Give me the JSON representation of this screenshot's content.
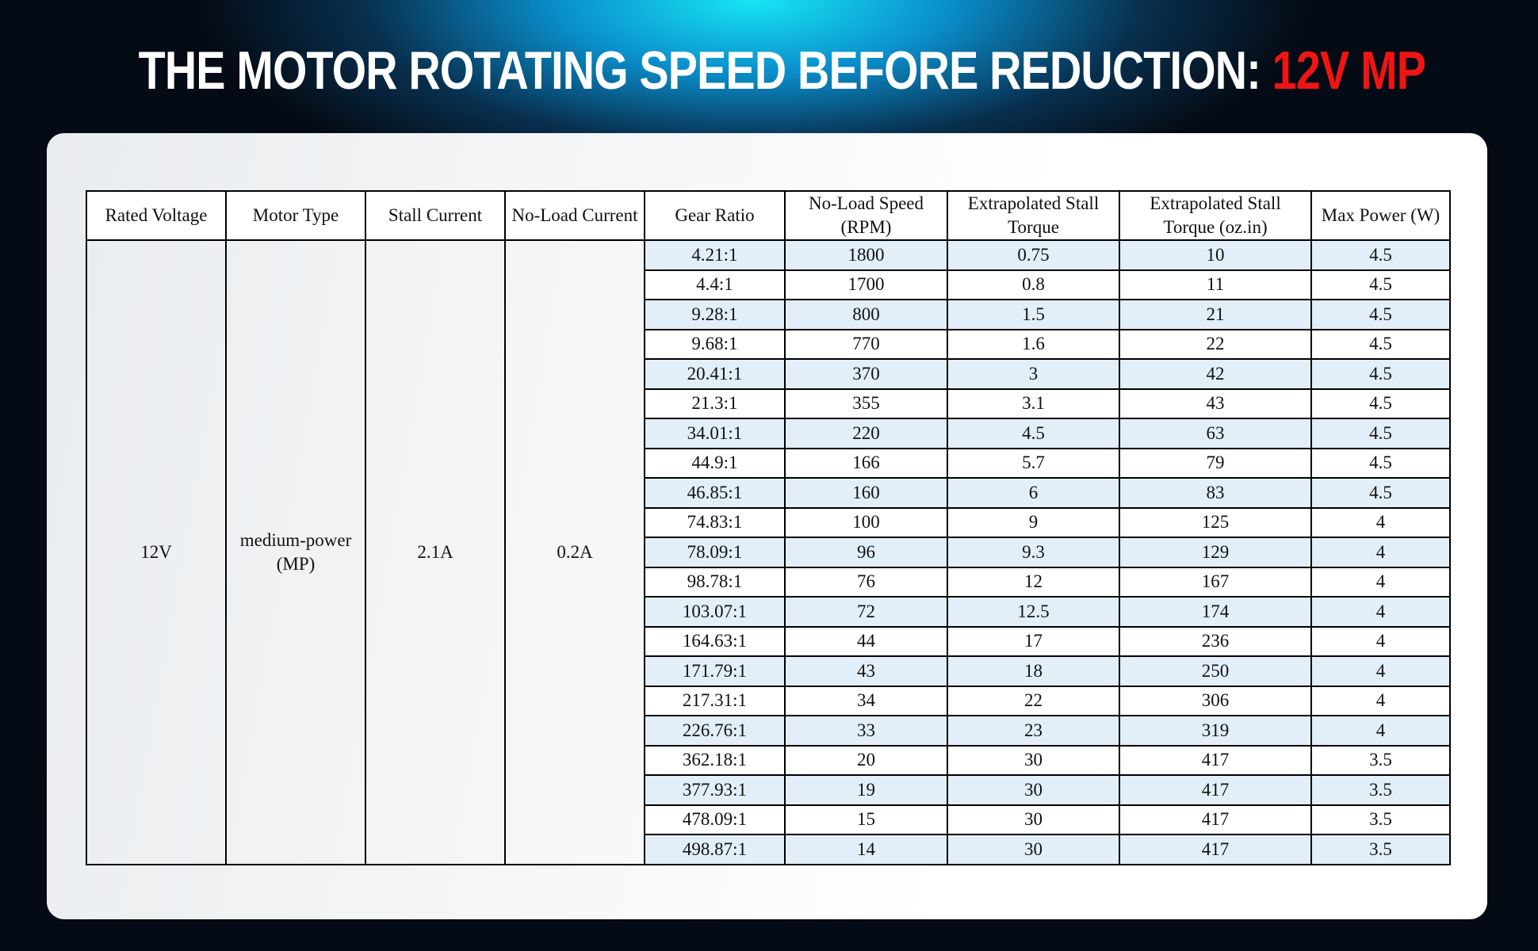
{
  "title": {
    "text": "THE MOTOR ROTATING SPEED BEFORE REDUCTION:",
    "highlight": "12V MP"
  },
  "table": {
    "header": [
      "Rated Voltage",
      "Motor Type",
      "Stall Current",
      "No-Load Current",
      "Gear Ratio",
      "No-Load Speed (RPM)",
      "Extrapolated Stall Torque",
      "Extrapolated Stall Torque (oz.in)",
      "Max Power (W)"
    ],
    "merged": [
      "12V",
      "medium-power (MP)",
      "2.1A",
      "0.2A"
    ],
    "rows": [
      [
        "4.21:1",
        "1800",
        "0.75",
        "10",
        "4.5"
      ],
      [
        "4.4:1",
        "1700",
        "0.8",
        "11",
        "4.5"
      ],
      [
        "9.28:1",
        "800",
        "1.5",
        "21",
        "4.5"
      ],
      [
        "9.68:1",
        "770",
        "1.6",
        "22",
        "4.5"
      ],
      [
        "20.41:1",
        "370",
        "3",
        "42",
        "4.5"
      ],
      [
        "21.3:1",
        "355",
        "3.1",
        "43",
        "4.5"
      ],
      [
        "34.01:1",
        "220",
        "4.5",
        "63",
        "4.5"
      ],
      [
        "44.9:1",
        "166",
        "5.7",
        "79",
        "4.5"
      ],
      [
        "46.85:1",
        "160",
        "6",
        "83",
        "4.5"
      ],
      [
        "74.83:1",
        "100",
        "9",
        "125",
        "4"
      ],
      [
        "78.09:1",
        "96",
        "9.3",
        "129",
        "4"
      ],
      [
        "98.78:1",
        "76",
        "12",
        "167",
        "4"
      ],
      [
        "103.07:1",
        "72",
        "12.5",
        "174",
        "4"
      ],
      [
        "164.63:1",
        "44",
        "17",
        "236",
        "4"
      ],
      [
        "171.79:1",
        "43",
        "18",
        "250",
        "4"
      ],
      [
        "217.31:1",
        "34",
        "22",
        "306",
        "4"
      ],
      [
        "226.76:1",
        "33",
        "23",
        "319",
        "4"
      ],
      [
        "362.18:1",
        "20",
        "30",
        "417",
        "3.5"
      ],
      [
        "377.93:1",
        "19",
        "30",
        "417",
        "3.5"
      ],
      [
        "478.09:1",
        "15",
        "30",
        "417",
        "3.5"
      ],
      [
        "498.87:1",
        "14",
        "30",
        "417",
        "3.5"
      ]
    ]
  }
}
